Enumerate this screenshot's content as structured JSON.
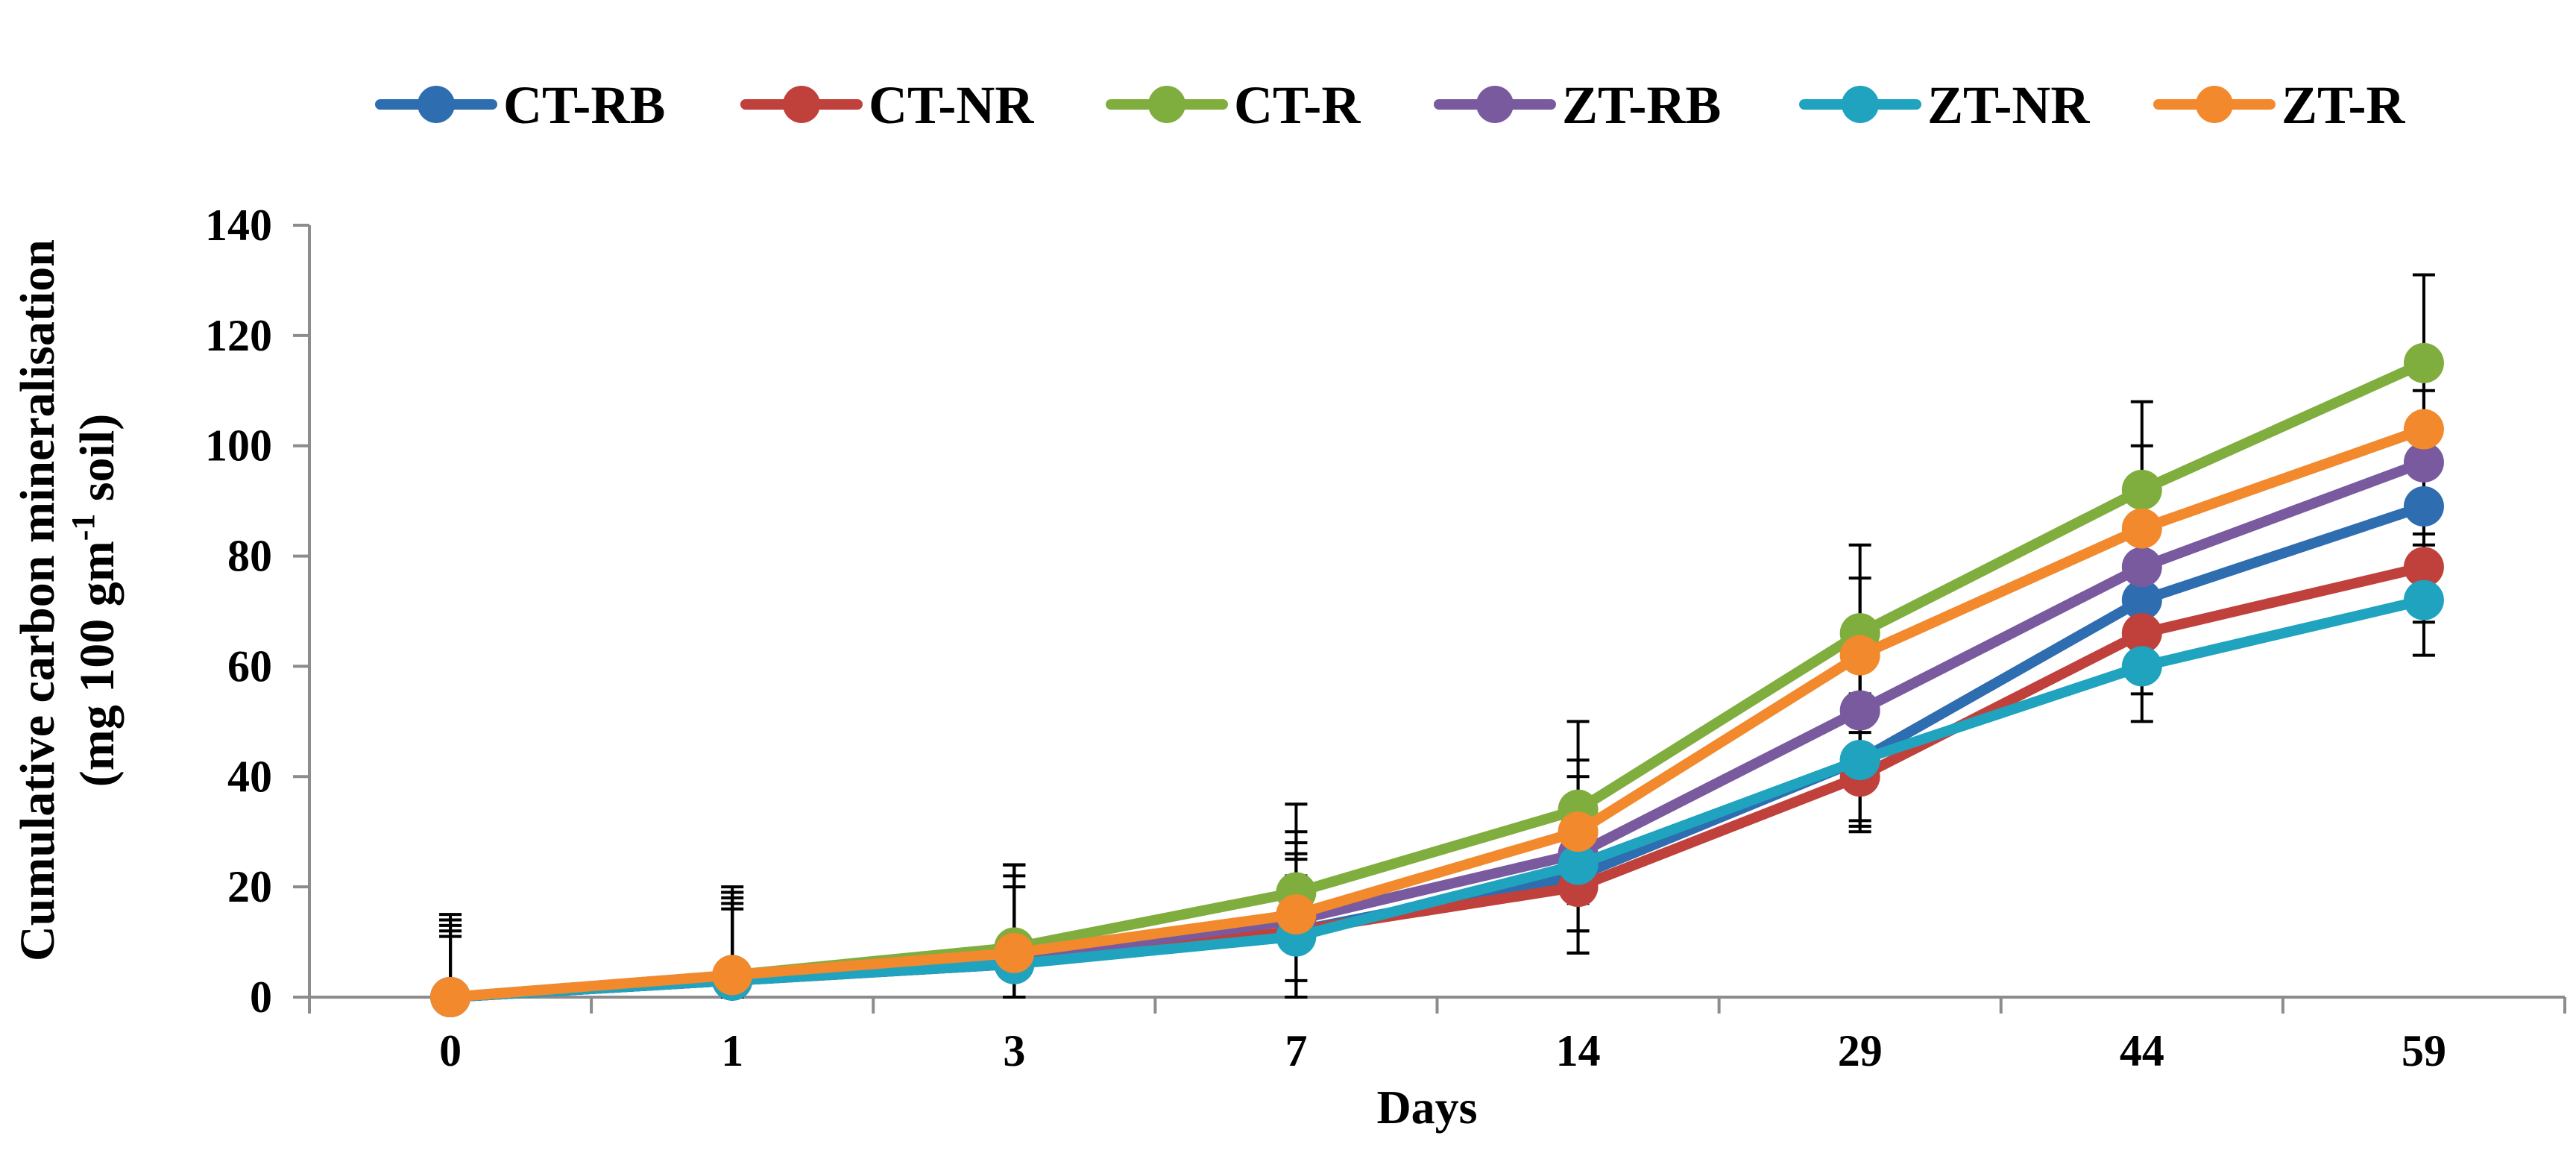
{
  "chart_data": {
    "type": "line",
    "title": "",
    "xlabel": "Days",
    "ylabel": {
      "line1": "Cumulative carbon mineralisation",
      "line2_prefix": "(mg 100 gm",
      "line2_sup": "-1",
      "line2_suffix": " soil)"
    },
    "categories": [
      "0",
      "1",
      "3",
      "7",
      "14",
      "29",
      "44",
      "59"
    ],
    "ylim": [
      0,
      140
    ],
    "yticks": [
      0,
      20,
      40,
      60,
      80,
      100,
      120,
      140
    ],
    "ytick_labels": [
      "0",
      "20",
      "40",
      "60",
      "80",
      "100",
      "120",
      "140"
    ],
    "grid": false,
    "legend_position": "top",
    "series": [
      {
        "name": "CT-RB",
        "color": "#2E6DB0",
        "values": [
          0,
          3,
          6,
          12,
          22,
          43,
          72,
          89
        ],
        "errors": [
          14,
          16,
          18,
          14,
          14,
          12,
          14,
          12
        ]
      },
      {
        "name": "CT-NR",
        "color": "#C0413B",
        "values": [
          0,
          3,
          6,
          12,
          20,
          40,
          66,
          78
        ],
        "errors": [
          12,
          14,
          16,
          13,
          12,
          10,
          11,
          10
        ]
      },
      {
        "name": "CT-R",
        "color": "#7FAE3E",
        "values": [
          0,
          4,
          9,
          19,
          34,
          66,
          92,
          115
        ],
        "errors": [
          15,
          16,
          15,
          16,
          16,
          16,
          16,
          16
        ]
      },
      {
        "name": "ZT-RB",
        "color": "#7A5A9E",
        "values": [
          0,
          3,
          7,
          14,
          26,
          52,
          78,
          97
        ],
        "errors": [
          13,
          15,
          17,
          14,
          14,
          12,
          14,
          13
        ]
      },
      {
        "name": "ZT-NR",
        "color": "#1FA3BE",
        "values": [
          0,
          3,
          6,
          11,
          24,
          43,
          60,
          72
        ],
        "errors": [
          11,
          13,
          14,
          11,
          12,
          11,
          10,
          10
        ]
      },
      {
        "name": "ZT-R",
        "color": "#F2892D",
        "values": [
          0,
          4,
          8,
          15,
          30,
          62,
          85,
          103
        ],
        "errors": [
          14,
          15,
          16,
          15,
          13,
          14,
          15,
          13
        ]
      }
    ]
  }
}
